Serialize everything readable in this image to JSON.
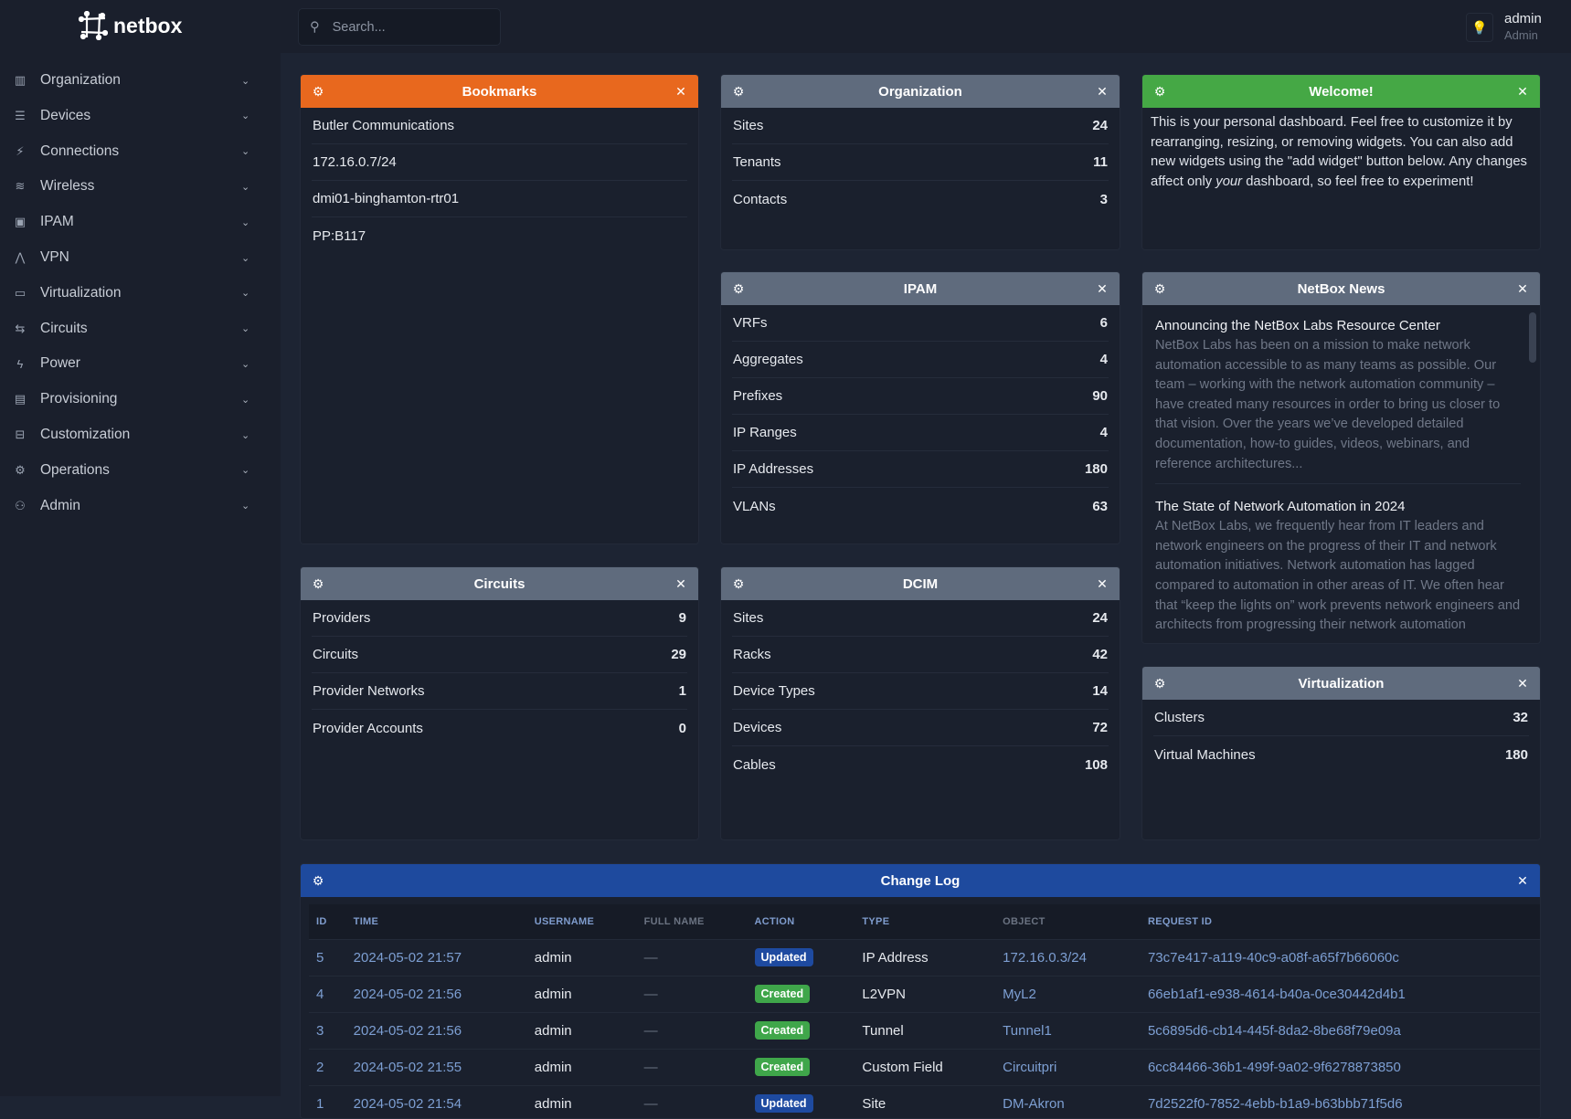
{
  "app": {
    "logo_text": "netbox"
  },
  "sidebar": {
    "items": [
      {
        "label": "Organization",
        "icon": "building-icon"
      },
      {
        "label": "Devices",
        "icon": "server-icon"
      },
      {
        "label": "Connections",
        "icon": "plug-icon"
      },
      {
        "label": "Wireless",
        "icon": "wifi-icon"
      },
      {
        "label": "IPAM",
        "icon": "counter-icon"
      },
      {
        "label": "VPN",
        "icon": "tunnel-icon"
      },
      {
        "label": "Virtualization",
        "icon": "monitor-icon"
      },
      {
        "label": "Circuits",
        "icon": "transit-icon"
      },
      {
        "label": "Power",
        "icon": "flash-icon"
      },
      {
        "label": "Provisioning",
        "icon": "file-document-icon"
      },
      {
        "label": "Customization",
        "icon": "toolbox-icon"
      },
      {
        "label": "Operations",
        "icon": "cogs-icon"
      },
      {
        "label": "Admin",
        "icon": "account-group-icon"
      }
    ]
  },
  "header": {
    "search_placeholder": "Search...",
    "user": "admin",
    "role": "Admin",
    "theme_icon": "lightbulb-icon"
  },
  "colors": {
    "orange": "#e8681e",
    "gray": "#5f6b7d",
    "green": "#45a845",
    "blue": "#1e4a9e",
    "created": "#3fa64a",
    "updated": "#1e4aa0"
  },
  "widgets": {
    "bookmarks": {
      "title": "Bookmarks",
      "rows": [
        "Butler Communications",
        "172.16.0.7/24",
        "dmi01-binghamton-rtr01",
        "PP:B117"
      ]
    },
    "organization": {
      "title": "Organization",
      "rows": [
        {
          "label": "Sites",
          "value": "24"
        },
        {
          "label": "Tenants",
          "value": "11"
        },
        {
          "label": "Contacts",
          "value": "3"
        }
      ]
    },
    "welcome": {
      "title": "Welcome!",
      "text_before": "This is your personal dashboard. Feel free to customize it by rearranging, resizing, or removing widgets. You can also add new widgets using the \"add widget\" button below. Any changes affect only ",
      "text_em": "your",
      "text_after": " dashboard, so feel free to experiment!"
    },
    "ipam": {
      "title": "IPAM",
      "rows": [
        {
          "label": "VRFs",
          "value": "6"
        },
        {
          "label": "Aggregates",
          "value": "4"
        },
        {
          "label": "Prefixes",
          "value": "90"
        },
        {
          "label": "IP Ranges",
          "value": "4"
        },
        {
          "label": "IP Addresses",
          "value": "180"
        },
        {
          "label": "VLANs",
          "value": "63"
        }
      ]
    },
    "news": {
      "title": "NetBox News",
      "items": [
        {
          "title": "Announcing the NetBox Labs Resource Center",
          "body": "NetBox Labs has been on a mission to make network automation accessible to as many teams as possible. Our team – working with the network automation community – have created many resources in order to bring us closer to that vision. Over the years we’ve developed detailed documentation, how-to guides, videos, webinars, and reference architectures..."
        },
        {
          "title": "The State of Network Automation in 2024",
          "body": "At NetBox Labs, we frequently hear from IT leaders and network engineers on the progress of their IT and network automation initiatives. Network automation has lagged compared to automation in other areas of IT. We often hear that “keep the lights on” work prevents network engineers and architects from progressing their network automation strategies."
        }
      ]
    },
    "circuits": {
      "title": "Circuits",
      "rows": [
        {
          "label": "Providers",
          "value": "9"
        },
        {
          "label": "Circuits",
          "value": "29"
        },
        {
          "label": "Provider Networks",
          "value": "1"
        },
        {
          "label": "Provider Accounts",
          "value": "0"
        }
      ]
    },
    "dcim": {
      "title": "DCIM",
      "rows": [
        {
          "label": "Sites",
          "value": "24"
        },
        {
          "label": "Racks",
          "value": "42"
        },
        {
          "label": "Device Types",
          "value": "14"
        },
        {
          "label": "Devices",
          "value": "72"
        },
        {
          "label": "Cables",
          "value": "108"
        }
      ]
    },
    "virtualization": {
      "title": "Virtualization",
      "rows": [
        {
          "label": "Clusters",
          "value": "32"
        },
        {
          "label": "Virtual Machines",
          "value": "180"
        }
      ]
    },
    "changelog": {
      "title": "Change Log",
      "columns": [
        "ID",
        "TIME",
        "USERNAME",
        "FULL NAME",
        "ACTION",
        "TYPE",
        "OBJECT",
        "REQUEST ID"
      ],
      "rows": [
        [
          "5",
          "2024-05-02 21:57",
          "admin",
          "—",
          "Updated",
          "IP Address",
          "172.16.0.3/24",
          "73c7e417-a119-40c9-a08f-a65f7b66060c"
        ],
        [
          "4",
          "2024-05-02 21:56",
          "admin",
          "—",
          "Created",
          "L2VPN",
          "MyL2",
          "66eb1af1-e938-4614-b40a-0ce30442d4b1"
        ],
        [
          "3",
          "2024-05-02 21:56",
          "admin",
          "—",
          "Created",
          "Tunnel",
          "Tunnel1",
          "5c6895d6-cb14-445f-8da2-8be68f79e09a"
        ],
        [
          "2",
          "2024-05-02 21:55",
          "admin",
          "—",
          "Created",
          "Custom Field",
          "Circuitpri",
          "6cc84466-36b1-499f-9a02-9f6278873850"
        ],
        [
          "1",
          "2024-05-02 21:54",
          "admin",
          "—",
          "Updated",
          "Site",
          "DM-Akron",
          "7d2522f0-7852-4ebb-b1a9-b63bbb71f5d6"
        ]
      ]
    }
  }
}
